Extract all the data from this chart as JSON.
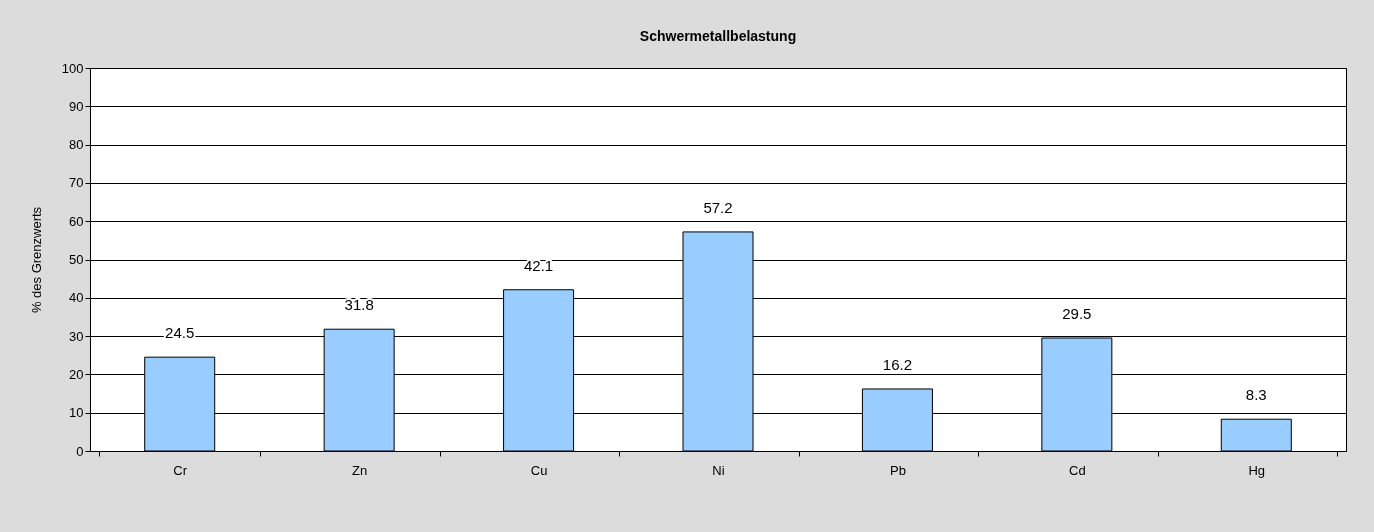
{
  "chart_data": {
    "type": "bar",
    "title": "Schwermetallbelastung",
    "ylabel": "% des Grenzwerts",
    "categories": [
      "Cr",
      "Zn",
      "Cu",
      "Ni",
      "Pb",
      "Cd",
      "Hg"
    ],
    "values": [
      24.5,
      31.8,
      42.1,
      57.2,
      16.2,
      29.5,
      8.3
    ],
    "color": "#99ccff",
    "ylim": [
      0,
      100
    ],
    "yticks": [
      0,
      10,
      20,
      30,
      40,
      50,
      60,
      70,
      80,
      90,
      100
    ],
    "grid": "y",
    "data_labels": true
  }
}
